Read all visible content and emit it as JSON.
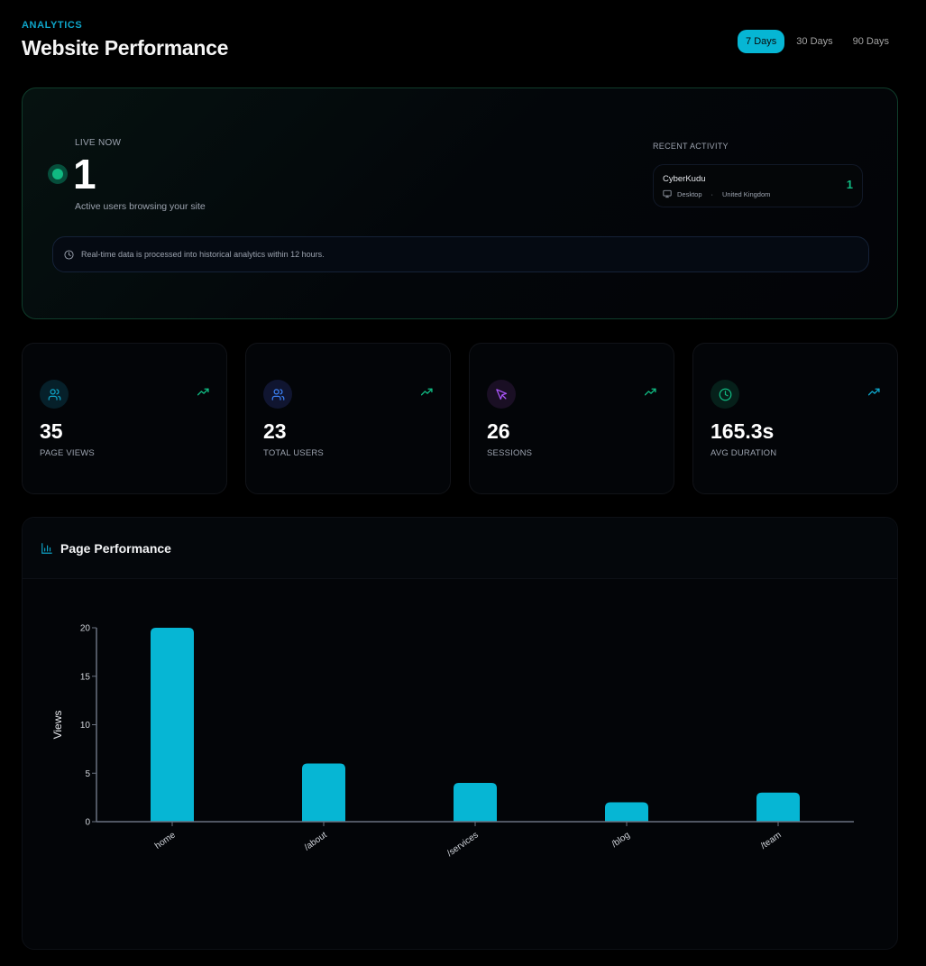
{
  "header": {
    "eyebrow": "ANALYTICS",
    "title": "Website Performance"
  },
  "range": {
    "options": [
      "7 Days",
      "30 Days",
      "90 Days"
    ],
    "selected": "7 Days"
  },
  "live": {
    "label": "LIVE NOW",
    "count": "1",
    "subtitle": "Active users browsing your site",
    "recent_label": "RECENT ACTIVITY",
    "recent": [
      {
        "name": "CyberKudu",
        "device": "Desktop",
        "separator": "·",
        "country": "United Kingdom",
        "count": "1",
        "icon": "monitor-icon"
      }
    ],
    "info": "Real-time data is processed into historical analytics within 12 hours.",
    "info_icon": "clock-icon",
    "colors": {
      "live": "#10b981",
      "border": "#0f3d2b"
    }
  },
  "stats": [
    {
      "value": "35",
      "label": "PAGE VIEWS",
      "icon": "users-icon",
      "icon_color": "#0ea5c9",
      "icon_bg": "#06202a",
      "trend_color": "#10b981"
    },
    {
      "value": "23",
      "label": "TOTAL USERS",
      "icon": "users-icon",
      "icon_color": "#3b82f6",
      "icon_bg": "#101530",
      "trend_color": "#10b981"
    },
    {
      "value": "26",
      "label": "SESSIONS",
      "icon": "cursor-icon",
      "icon_color": "#a855f7",
      "icon_bg": "#1a0f24",
      "trend_color": "#10b981"
    },
    {
      "value": "165.3s",
      "label": "AVG DURATION",
      "icon": "clock-icon",
      "icon_color": "#10b981",
      "icon_bg": "#06201a",
      "trend_color": "#0ea5c9"
    }
  ],
  "performance": {
    "title": "Page Performance",
    "icon": "bar-chart-icon"
  },
  "chart_data": {
    "type": "bar",
    "title": "Page Performance",
    "categories": [
      "home",
      "/about",
      "/services",
      "/blog",
      "/team"
    ],
    "values": [
      20,
      6,
      4,
      2,
      3
    ],
    "xlabel": "",
    "ylabel": "Views",
    "ylim": [
      0,
      20
    ],
    "yticks": [
      0,
      5,
      10,
      15,
      20
    ],
    "grid": false,
    "legend": null,
    "bar_color": "#06b6d4"
  }
}
